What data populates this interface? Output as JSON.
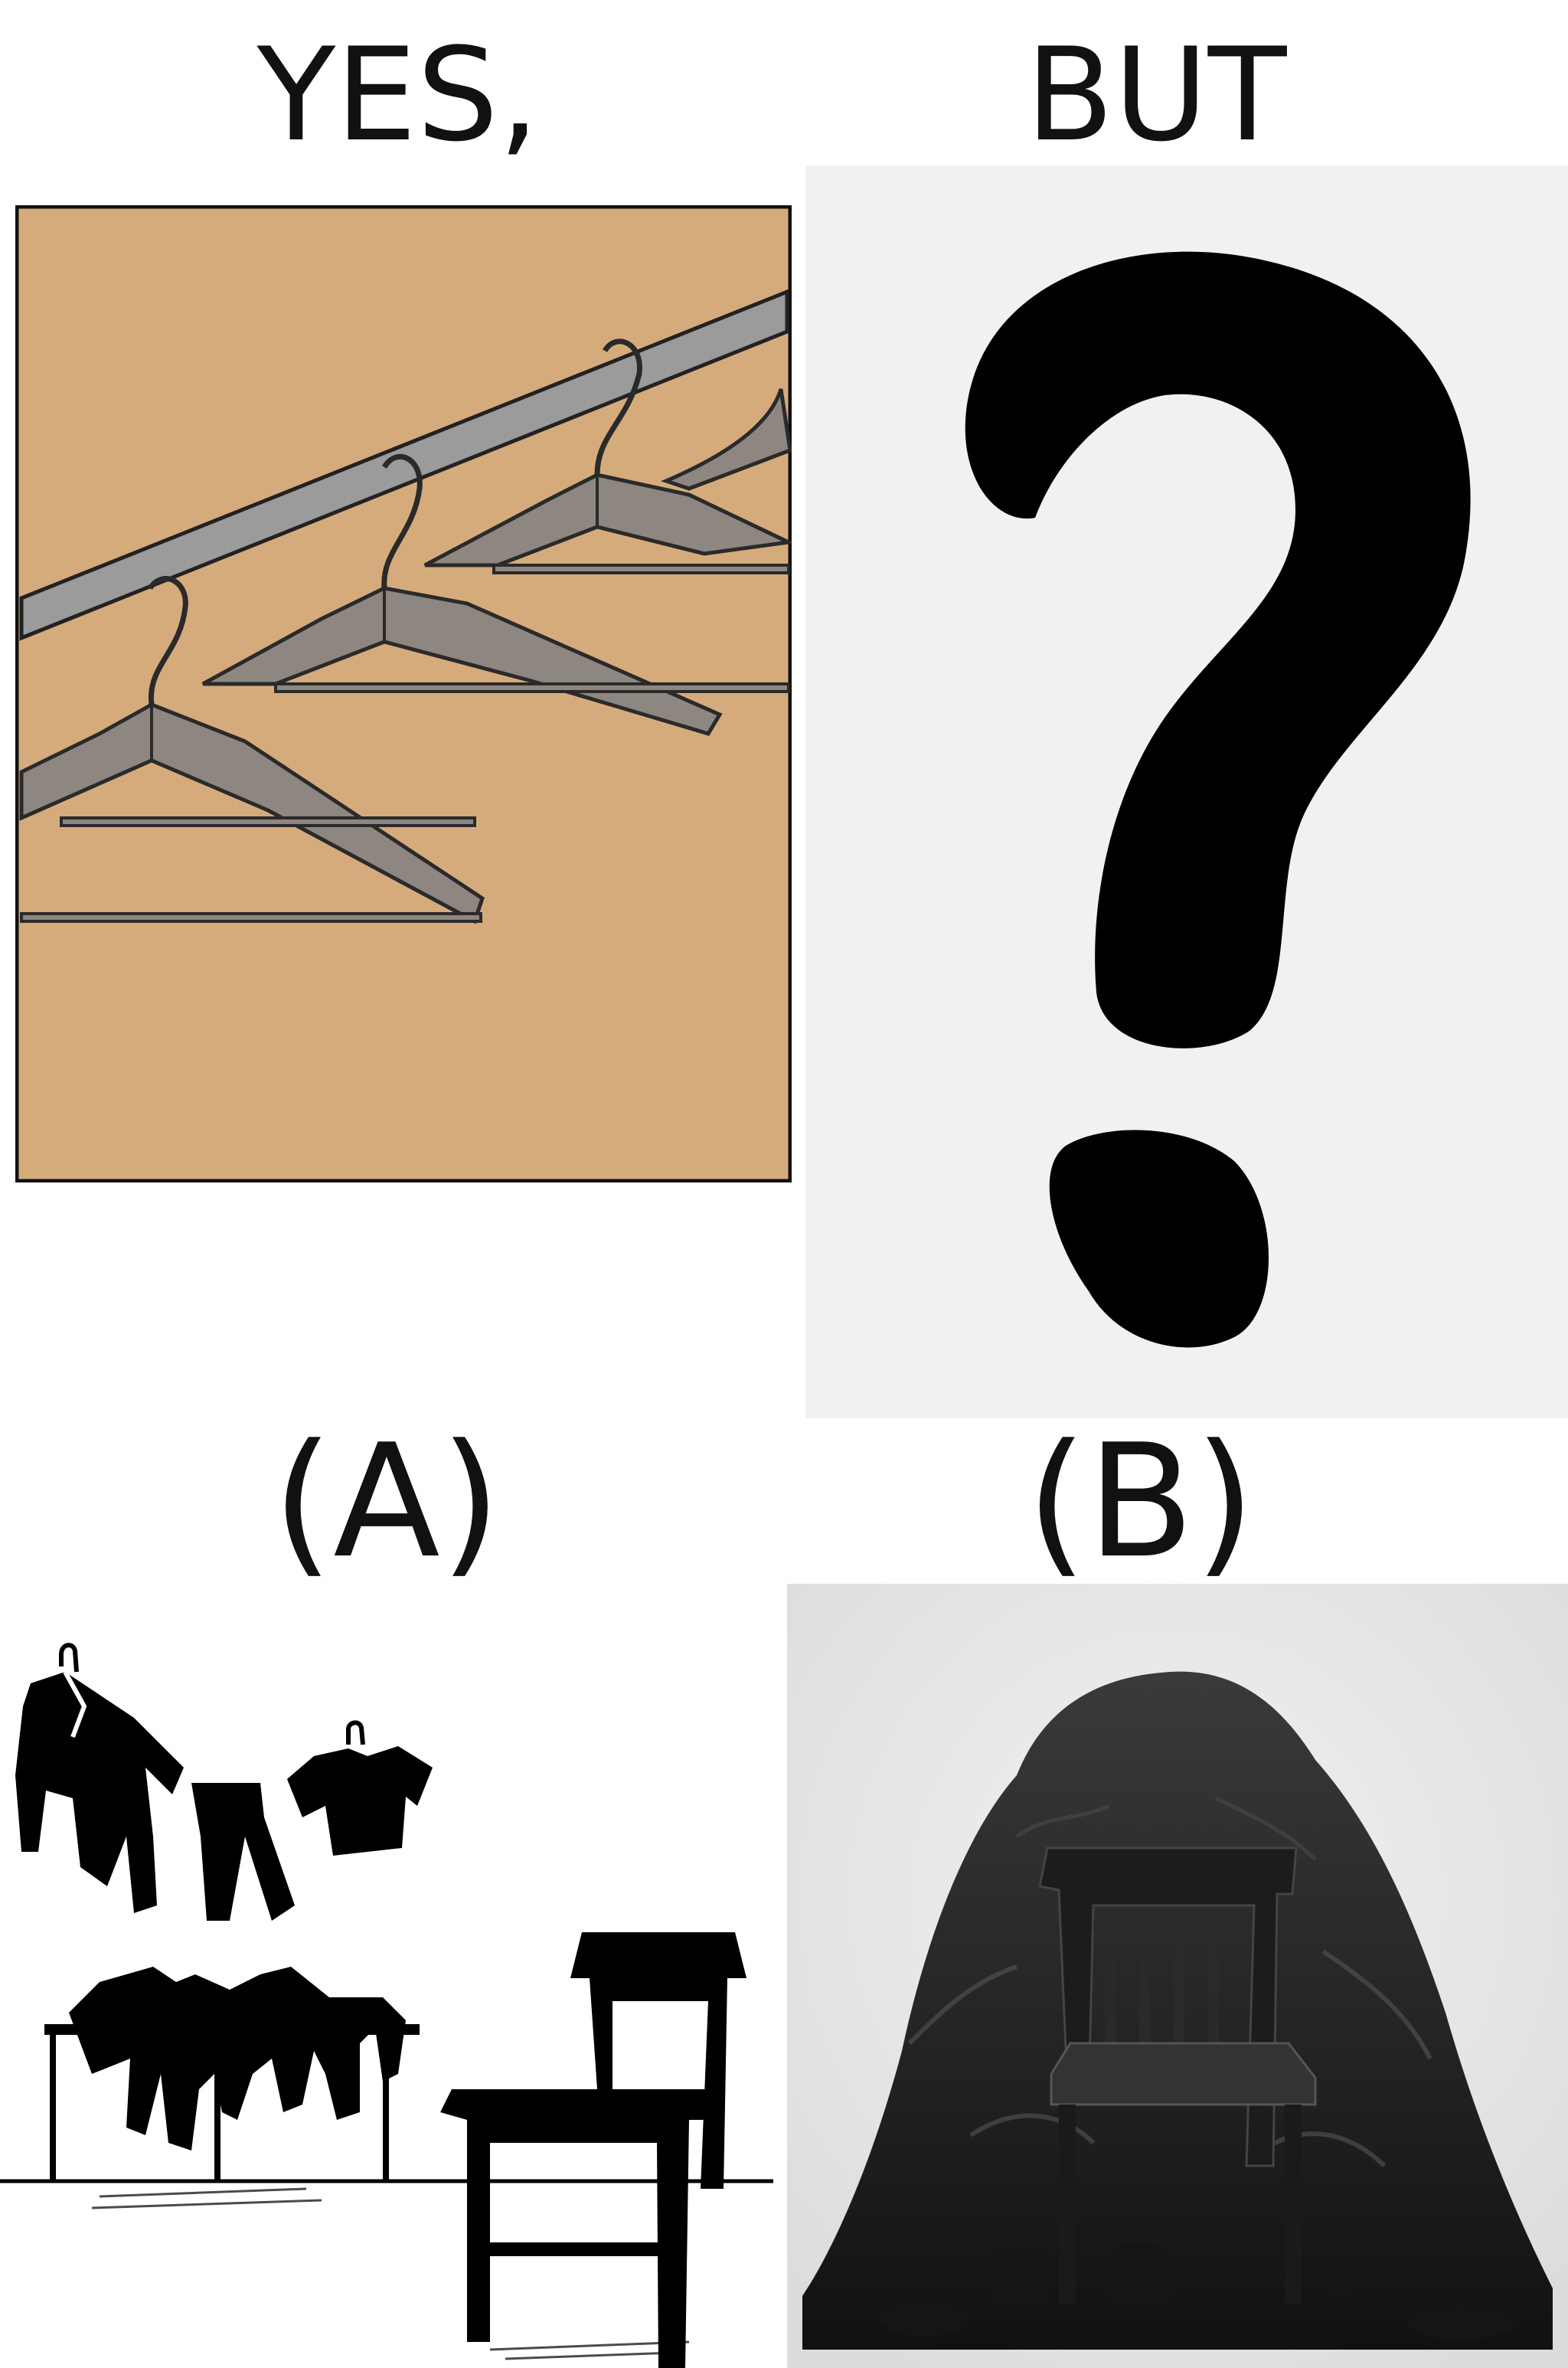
{
  "headings": {
    "yes": "YES,",
    "but": "BUT",
    "option_a": "(A)",
    "option_b": "(B)"
  },
  "colors": {
    "closet_wall": "#d6ab7c",
    "rail": "#9b9b9b",
    "hanger": "#8e8680",
    "silhouette": "#000000"
  }
}
